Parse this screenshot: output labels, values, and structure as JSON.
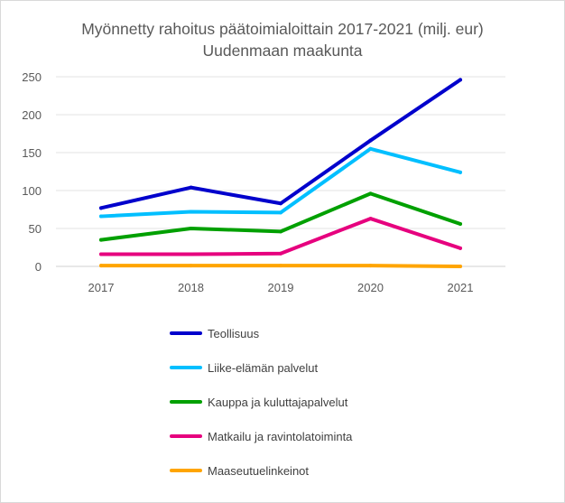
{
  "chart_data": {
    "type": "line",
    "title": "Myönnetty rahoitus päätoimialoittain 2017-2021 (milj. eur)",
    "subtitle": "Uudenmaan maakunta",
    "categories": [
      "2017",
      "2018",
      "2019",
      "2020",
      "2021"
    ],
    "ylim": [
      0,
      250
    ],
    "yticks": [
      0,
      50,
      100,
      150,
      200,
      250
    ],
    "grid": true,
    "legend_position": "bottom",
    "series": [
      {
        "name": "Teollisuus",
        "color": "#0000CC",
        "values": [
          77,
          104,
          83,
          166,
          246
        ]
      },
      {
        "name": "Liike-elämän palvelut",
        "color": "#00BFFF",
        "values": [
          66,
          72,
          71,
          155,
          124
        ]
      },
      {
        "name": "Kauppa ja kuluttajapalvelut",
        "color": "#00A000",
        "values": [
          35,
          50,
          46,
          96,
          56
        ]
      },
      {
        "name": "Matkailu ja ravintolatoiminta",
        "color": "#E6007E",
        "values": [
          16,
          16,
          17,
          63,
          24
        ]
      },
      {
        "name": "Maaseutuelinkeinot",
        "color": "#FFA500",
        "values": [
          1,
          1,
          1,
          1,
          0
        ]
      }
    ]
  }
}
